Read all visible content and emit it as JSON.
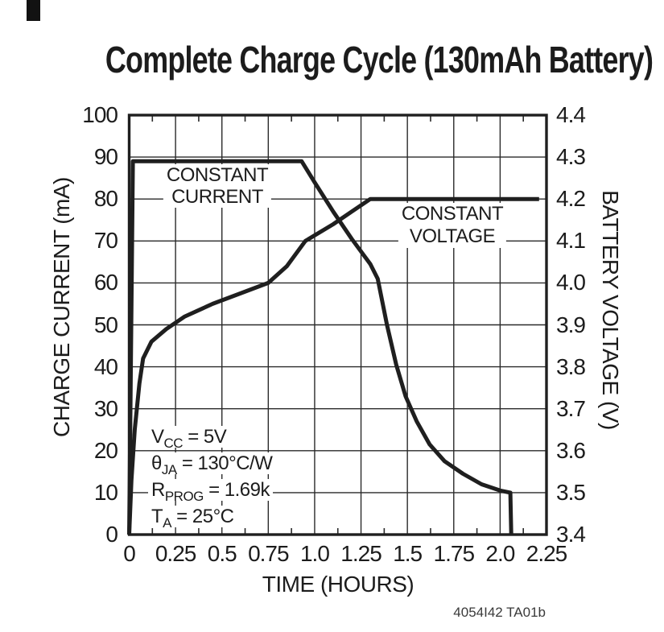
{
  "page": {
    "title": "Complete Charge Cycle (130mAh Battery)",
    "footnote": "4054I42 TA01b"
  },
  "chart_data": {
    "type": "line",
    "title": "Complete Charge Cycle (130mAh Battery)",
    "xlabel": "TIME (HOURS)",
    "xlim": [
      0,
      2.25
    ],
    "x_ticks": [
      0,
      0.25,
      0.5,
      0.75,
      1.0,
      1.25,
      1.5,
      1.75,
      2.0,
      2.25
    ],
    "x_tick_labels": [
      "0",
      "0.25",
      "0.5",
      "0.75",
      "1.0",
      "1.25",
      "1.5",
      "1.75",
      "2.0",
      "2.25"
    ],
    "x_minor_tick_step": 0.125,
    "grid": true,
    "left_axis": {
      "label": "CHARGE CURRENT (mA)",
      "lim": [
        0,
        100
      ],
      "ticks": [
        0,
        10,
        20,
        30,
        40,
        50,
        60,
        70,
        80,
        90,
        100
      ],
      "tick_labels": [
        "0",
        "10",
        "20",
        "30",
        "40",
        "50",
        "60",
        "70",
        "80",
        "90",
        "100"
      ]
    },
    "right_axis": {
      "label": "BATTERY VOLTAGE (V)",
      "lim": [
        3.4,
        4.4
      ],
      "ticks": [
        3.4,
        3.5,
        3.6,
        3.7,
        3.8,
        3.9,
        4.0,
        4.1,
        4.2,
        4.3,
        4.4
      ],
      "tick_labels": [
        "3.4",
        "3.5",
        "3.6",
        "3.7",
        "3.8",
        "3.9",
        "4.0",
        "4.1",
        "4.2",
        "4.3",
        "4.4"
      ]
    },
    "series": [
      {
        "name": "charge_current",
        "axis": "left",
        "points": [
          [
            0,
            0
          ],
          [
            0.02,
            89
          ],
          [
            0.93,
            89
          ],
          [
            1.0,
            84
          ],
          [
            1.1,
            77
          ],
          [
            1.2,
            70.5
          ],
          [
            1.3,
            64.5
          ],
          [
            1.34,
            61
          ],
          [
            1.39,
            50
          ],
          [
            1.44,
            40.5
          ],
          [
            1.49,
            33
          ],
          [
            1.55,
            27
          ],
          [
            1.62,
            21.5
          ],
          [
            1.7,
            17.5
          ],
          [
            1.8,
            14.5
          ],
          [
            1.9,
            12
          ],
          [
            2.0,
            10.5
          ],
          [
            2.055,
            10
          ],
          [
            2.06,
            0
          ]
        ]
      },
      {
        "name": "battery_voltage",
        "axis": "right",
        "points": [
          [
            0,
            3.4
          ],
          [
            0.012,
            3.53
          ],
          [
            0.03,
            3.65
          ],
          [
            0.055,
            3.76
          ],
          [
            0.075,
            3.82
          ],
          [
            0.12,
            3.86
          ],
          [
            0.2,
            3.89
          ],
          [
            0.3,
            3.92
          ],
          [
            0.45,
            3.95
          ],
          [
            0.6,
            3.975
          ],
          [
            0.75,
            4.0
          ],
          [
            0.85,
            4.04
          ],
          [
            0.95,
            4.1
          ],
          [
            1.1,
            4.14
          ],
          [
            1.2,
            4.17
          ],
          [
            1.3,
            4.2
          ],
          [
            2.21,
            4.2
          ]
        ]
      }
    ],
    "annotations": [
      {
        "line1": "CONSTANT",
        "line2": "CURRENT"
      },
      {
        "line1": "CONSTANT",
        "line2": "VOLTAGE"
      }
    ],
    "conditions": [
      {
        "base": "V",
        "sub": "CC",
        "rest": " = 5V"
      },
      {
        "base": "θ",
        "sub": "JA",
        "rest": " = 130°C/W"
      },
      {
        "base": "R",
        "sub": "PROG",
        "rest": " = 1.69k"
      },
      {
        "base": "T",
        "sub": "A",
        "rest": " = 25°C"
      }
    ],
    "footnote": "4054I42 TA01b",
    "colors": {
      "line": "#1f1f1f",
      "grid": "#2a2a2a",
      "background": "#ffffff"
    }
  }
}
